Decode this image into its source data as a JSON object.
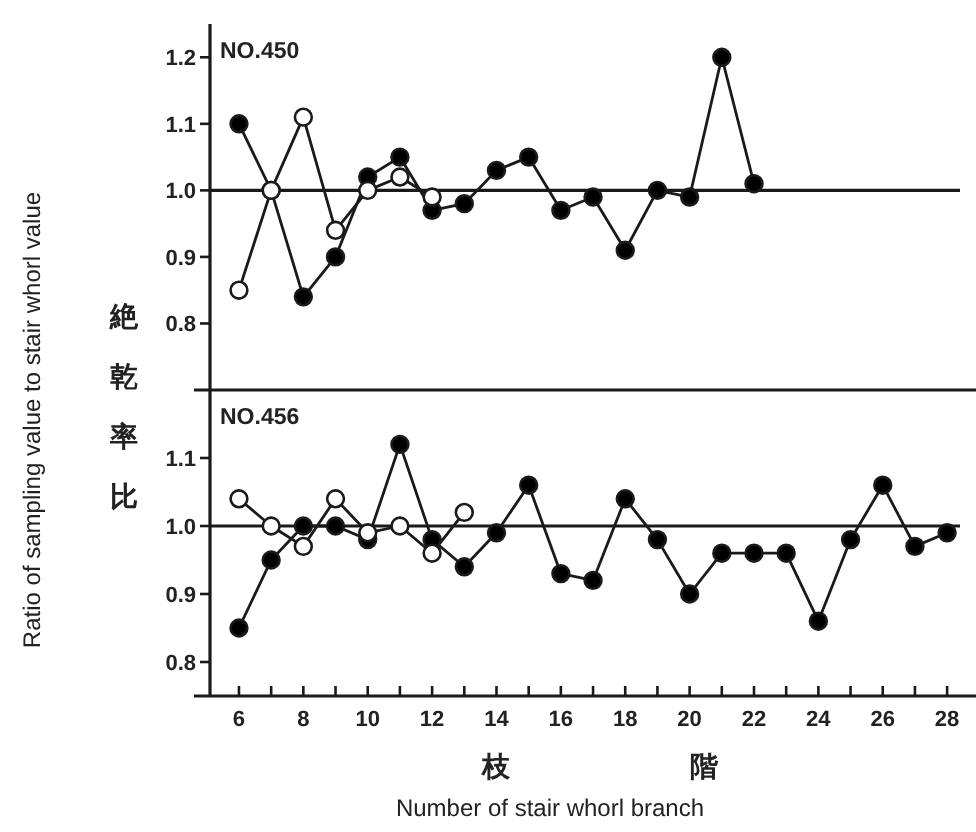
{
  "chart_data": [
    {
      "type": "line",
      "title": "NO.450",
      "ylabel": "Ratio of sampling value to stair whorl value",
      "annotations": [
        "絶乾率比"
      ],
      "xlim": [
        5.1,
        28.4
      ],
      "ylim": [
        0.7,
        1.25
      ],
      "yticks": [
        0.8,
        0.9,
        {
          "value": 1.0,
          "label": "1.0"
        },
        1.1,
        1.2
      ],
      "tick_labels": "y",
      "marker": "circle",
      "grid": false,
      "ref_lines": [
        {
          "axis": "y",
          "value": 1.0
        }
      ],
      "series": [
        {
          "color": "#000000",
          "x": [
            6,
            7,
            8,
            9,
            10,
            11,
            12,
            13,
            14,
            15,
            16,
            17,
            18,
            19,
            20,
            21,
            22
          ],
          "values": [
            1.1,
            1.0,
            0.84,
            0.9,
            1.02,
            1.05,
            0.97,
            0.98,
            1.03,
            1.05,
            0.97,
            0.99,
            0.91,
            1.0,
            0.99,
            1.2,
            1.01
          ]
        },
        {
          "color": "#ffffff",
          "x": [
            6,
            7,
            8,
            9,
            10,
            11,
            12
          ],
          "values": [
            0.85,
            1.0,
            1.11,
            0.94,
            1.0,
            1.02,
            0.99
          ]
        }
      ]
    },
    {
      "type": "line",
      "title": "NO.456",
      "xlabel": "Number of stair whorl branch",
      "annotations": [
        "枝階"
      ],
      "xlim": [
        5.1,
        28.4
      ],
      "ylim": [
        0.75,
        1.2
      ],
      "yticks": [
        0.8,
        0.9,
        {
          "value": 1.0,
          "label": "1.0"
        },
        1.1
      ],
      "xticks": [
        6,
        {
          "value": 7,
          "label": null
        },
        8,
        {
          "value": 9,
          "label": null
        },
        10,
        {
          "value": 11,
          "label": null
        },
        12,
        {
          "value": 13,
          "label": null
        },
        14,
        {
          "value": 15,
          "label": null
        },
        16,
        {
          "value": 17,
          "label": null
        },
        18,
        {
          "value": 19,
          "label": null
        },
        20,
        {
          "value": 21,
          "label": null
        },
        22,
        {
          "value": 23,
          "label": null
        },
        24,
        {
          "value": 25,
          "label": null
        },
        26,
        {
          "value": 27,
          "label": null
        },
        28
      ],
      "marker": "circle",
      "grid": false,
      "ref_lines": [
        {
          "axis": "y",
          "value": 1.0
        }
      ],
      "series": [
        {
          "color": "#000000",
          "x": [
            6,
            7,
            8,
            9,
            10,
            11,
            12,
            13,
            14,
            15,
            16,
            17,
            18,
            19,
            20,
            21,
            22,
            23,
            24,
            25,
            26,
            27,
            28
          ],
          "values": [
            0.85,
            0.95,
            1.0,
            1.0,
            0.98,
            1.12,
            0.98,
            0.94,
            0.99,
            1.06,
            0.93,
            0.92,
            1.04,
            0.98,
            0.9,
            0.96,
            0.96,
            0.96,
            0.86,
            0.98,
            1.06,
            0.97,
            0.99
          ]
        },
        {
          "color": "#ffffff",
          "x": [
            6,
            7,
            8,
            9,
            10,
            11,
            12,
            13
          ],
          "values": [
            1.04,
            1.0,
            0.97,
            1.04,
            0.99,
            1.0,
            0.96,
            1.02
          ]
        }
      ]
    }
  ]
}
